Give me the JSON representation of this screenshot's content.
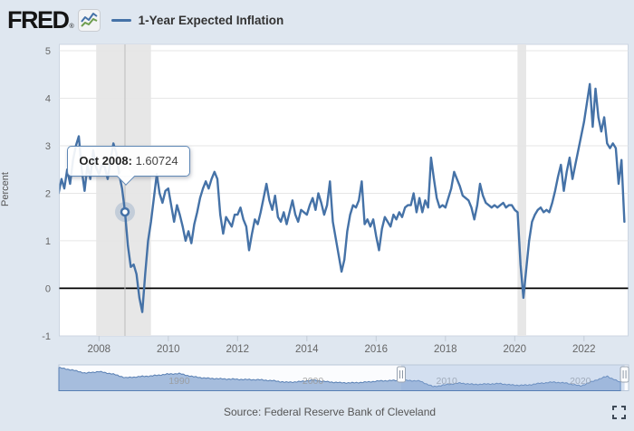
{
  "header": {
    "logo_text": "FRED",
    "registered_mark": "®",
    "logo_icon": "mini-line-chart-icon",
    "legend": {
      "series_label": "1-Year Expected Inflation"
    }
  },
  "tooltip": {
    "date_label": "Oct 2008",
    "separator": ": ",
    "value": "1.60724"
  },
  "footer": {
    "source_text": "Source: Federal Reserve Bank of Cleveland"
  },
  "colors": {
    "background": "#dfe7f0",
    "plot_background": "#ffffff",
    "plot_border": "#ccd6e2",
    "line": "#4572a7",
    "grid": "#e6e6e6",
    "zero_line": "#000000",
    "recession_band": "#e7e7e7",
    "crosshair": "#bdbdbd",
    "tooltip_border": "#5e87b5",
    "axis_label": "#666666",
    "halo": "rgba(69,114,167,0.22)",
    "navigator_fill": "#a6bddd",
    "navigator_line": "#587fb3",
    "navigator_selection": "rgba(148,176,219,0.38)",
    "navigator_label": "#999999"
  },
  "chart_data": {
    "type": "line",
    "title": "1-Year Expected Inflation",
    "xlabel": "",
    "ylabel": "Percent",
    "ylim": [
      -1,
      5
    ],
    "yticks": [
      5,
      4,
      3,
      2,
      1,
      0,
      -1
    ],
    "xticks": [
      2008,
      2010,
      2012,
      2014,
      2016,
      2018,
      2020,
      2022
    ],
    "grid": true,
    "legend_position": "top",
    "frequency": "monthly",
    "start": "2006-11",
    "end": "2023-03",
    "recession_bands": [
      {
        "from": 2007.92,
        "to": 2009.5
      },
      {
        "from": 2020.08,
        "to": 2020.33
      }
    ],
    "highlight": {
      "date": "Oct 2008",
      "value": 1.60724,
      "index": 23
    },
    "series": [
      {
        "name": "1-Year Expected Inflation",
        "values": [
          2.0,
          2.3,
          2.1,
          2.5,
          2.2,
          2.7,
          3.0,
          3.2,
          2.5,
          2.05,
          2.6,
          2.3,
          2.9,
          2.55,
          2.4,
          2.6,
          2.55,
          2.3,
          2.7,
          3.05,
          2.85,
          2.4,
          2.1,
          1.60724,
          0.9,
          0.45,
          0.5,
          0.3,
          -0.2,
          -0.5,
          0.3,
          1.0,
          1.4,
          1.9,
          2.4,
          2.0,
          1.8,
          2.05,
          2.1,
          1.75,
          1.4,
          1.75,
          1.55,
          1.3,
          1.0,
          1.2,
          0.95,
          1.35,
          1.6,
          1.9,
          2.1,
          2.25,
          2.1,
          2.3,
          2.45,
          2.3,
          1.55,
          1.15,
          1.5,
          1.4,
          1.3,
          1.55,
          1.55,
          1.7,
          1.45,
          1.3,
          0.8,
          1.15,
          1.45,
          1.35,
          1.6,
          1.9,
          2.2,
          1.85,
          1.65,
          1.95,
          1.5,
          1.4,
          1.6,
          1.35,
          1.6,
          1.85,
          1.55,
          1.4,
          1.65,
          1.6,
          1.55,
          1.75,
          1.9,
          1.65,
          2.0,
          1.8,
          1.55,
          1.75,
          2.25,
          1.4,
          1.05,
          0.7,
          0.35,
          0.6,
          1.2,
          1.55,
          1.75,
          1.7,
          1.85,
          2.25,
          1.35,
          1.45,
          1.3,
          1.45,
          1.1,
          0.8,
          1.25,
          1.5,
          1.4,
          1.3,
          1.55,
          1.45,
          1.6,
          1.5,
          1.7,
          1.75,
          1.75,
          2.0,
          1.6,
          1.9,
          1.6,
          1.85,
          1.7,
          2.75,
          2.3,
          1.9,
          1.7,
          1.75,
          1.7,
          1.9,
          2.1,
          2.45,
          2.3,
          2.15,
          1.95,
          1.9,
          1.85,
          1.7,
          1.45,
          1.75,
          2.2,
          1.95,
          1.8,
          1.75,
          1.7,
          1.75,
          1.7,
          1.75,
          1.8,
          1.7,
          1.75,
          1.75,
          1.65,
          1.6,
          0.5,
          -0.2,
          0.4,
          1.0,
          1.4,
          1.55,
          1.65,
          1.7,
          1.6,
          1.65,
          1.6,
          1.8,
          2.05,
          2.35,
          2.6,
          2.05,
          2.45,
          2.75,
          2.3,
          2.6,
          2.9,
          3.2,
          3.5,
          3.9,
          4.3,
          3.4,
          4.2,
          3.6,
          3.3,
          3.6,
          3.05,
          2.95,
          3.05,
          2.95,
          2.2,
          2.7,
          1.4
        ]
      }
    ]
  },
  "navigator": {
    "type": "area",
    "x_start": 1981,
    "x_end": 2023.6,
    "selected_range": [
      2006.6,
      2023.3
    ],
    "decade_labels": [
      {
        "label": "1990",
        "year": 1990
      },
      {
        "label": "2000",
        "year": 2000
      },
      {
        "label": "2010",
        "year": 2010
      },
      {
        "label": "2020",
        "year": 2020
      }
    ],
    "yearly_values": [
      5.8,
      5.2,
      4.4,
      4.8,
      4.2,
      3.2,
      3.5,
      3.7,
      4.1,
      4.3,
      3.5,
      3.1,
      2.95,
      2.85,
      2.75,
      2.7,
      2.45,
      2.05,
      2.2,
      2.6,
      2.2,
      1.95,
      1.9,
      2.1,
      2.4,
      2.5,
      2.55,
      2.35,
      0.9,
      1.45,
      1.85,
      1.5,
      1.6,
      1.7,
      1.3,
      1.3,
      1.8,
      2.1,
      1.8,
      1.1,
      2.4,
      3.6,
      2.0
    ]
  }
}
